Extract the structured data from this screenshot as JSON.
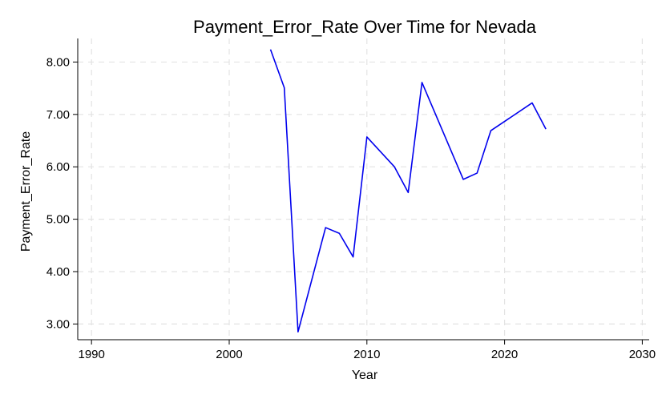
{
  "chart_data": {
    "type": "line",
    "title": "Payment_Error_Rate Over Time for Nevada",
    "xlabel": "Year",
    "ylabel": "Payment_Error_Rate",
    "xlim": [
      1989,
      2030.5
    ],
    "ylim": [
      2.7,
      8.45
    ],
    "xticks": [
      1990,
      2000,
      2010,
      2020,
      2030
    ],
    "yticks": [
      3.0,
      4.0,
      5.0,
      6.0,
      7.0,
      8.0
    ],
    "ytick_labels": [
      "3.00",
      "4.00",
      "5.00",
      "6.00",
      "7.00",
      "8.00"
    ],
    "grid": true,
    "series": [
      {
        "color": "#0000ee",
        "x": [
          2003,
          2004,
          2005,
          2007,
          2008,
          2009,
          2010,
          2012,
          2013,
          2014,
          2017,
          2018,
          2019,
          2022,
          2023
        ],
        "y": [
          8.24,
          7.51,
          2.85,
          4.84,
          4.73,
          4.28,
          6.57,
          6.0,
          5.51,
          7.61,
          5.76,
          5.88,
          6.69,
          7.22,
          6.72
        ]
      }
    ]
  }
}
